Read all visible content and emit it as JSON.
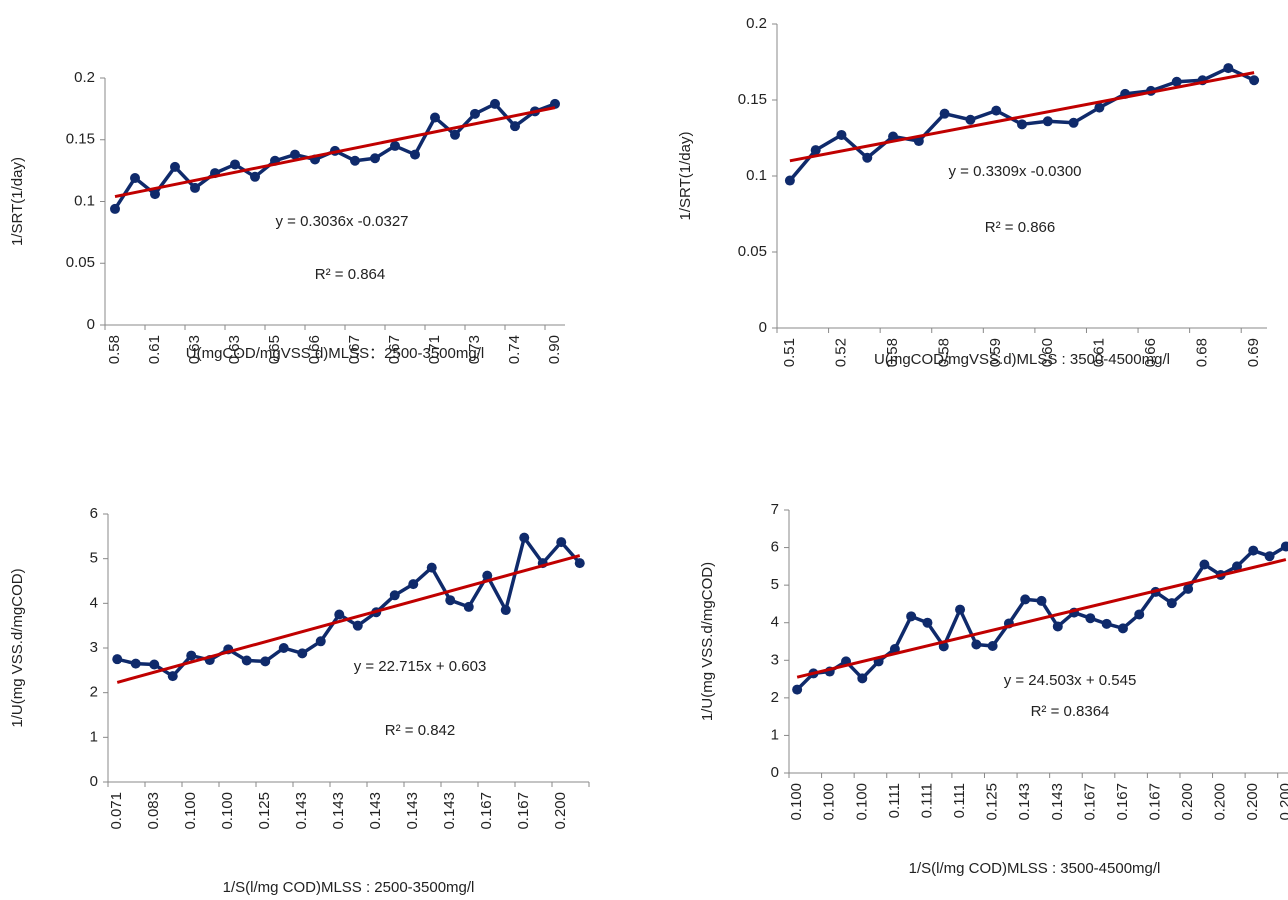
{
  "chart_data": [
    {
      "type": "line",
      "color": "#0f2a6b",
      "categories": [
        "0.58",
        null,
        "0.61",
        null,
        "0.63",
        null,
        "0.63",
        null,
        "0.65",
        null,
        "0.66",
        null,
        "0.67",
        null,
        "0.67",
        null,
        "0.71",
        null,
        "0.73",
        null,
        "0.74",
        null,
        "0.90"
      ],
      "values": [
        0.094,
        0.119,
        0.106,
        0.128,
        0.111,
        0.123,
        0.13,
        0.12,
        0.133,
        0.138,
        0.134,
        0.141,
        0.133,
        0.135,
        0.145,
        0.138,
        0.168,
        0.154,
        0.171,
        0.179,
        0.161,
        0.173,
        0.179
      ],
      "trendline": {
        "color": "#c00000",
        "values": [
          0.104,
          0.176
        ]
      },
      "ylim": [
        0,
        0.2
      ],
      "yticks": [
        0,
        0.05,
        0.1,
        0.15,
        0.2
      ],
      "x_label": "U(mgCOD/mgVSS.d)MLSS：2500-3500mg/l",
      "y_label": "1/SRT(1/day)",
      "annotations": [
        "y = 0.3036x -0.0327",
        "R² = 0.864"
      ]
    },
    {
      "type": "line",
      "color": "#0f2a6b",
      "categories": [
        "0.51",
        null,
        "0.52",
        null,
        "0.58",
        null,
        "0.58",
        null,
        "0.59",
        null,
        "0.60",
        null,
        "0.61",
        null,
        "0.66",
        null,
        "0.68",
        null,
        "0.69"
      ],
      "values": [
        0.097,
        0.117,
        0.127,
        0.112,
        0.126,
        0.123,
        0.141,
        0.137,
        0.143,
        0.134,
        0.136,
        0.135,
        0.145,
        0.154,
        0.156,
        0.162,
        0.163,
        0.171,
        0.163
      ],
      "trendline": {
        "color": "#c00000",
        "values": [
          0.11,
          0.168
        ]
      },
      "ylim": [
        0,
        0.2
      ],
      "yticks": [
        0,
        0.05,
        0.1,
        0.15,
        0.2
      ],
      "x_label": "U(mgCOD/mgVSS.d)MLSS : 3500-4500mg/l",
      "y_label": "1/SRT(1/day)",
      "annotations": [
        "y = 0.3309x -0.0300",
        "R² = 0.866"
      ]
    },
    {
      "type": "line",
      "color": "#0f2a6b",
      "categories": [
        "0.071",
        null,
        "0.083",
        null,
        "0.100",
        null,
        "0.100",
        null,
        "0.125",
        null,
        "0.143",
        null,
        "0.143",
        null,
        "0.143",
        null,
        "0.143",
        null,
        "0.143",
        null,
        "0.167",
        null,
        "0.167",
        null,
        "0.200",
        null
      ],
      "values": [
        2.75,
        2.65,
        2.63,
        2.37,
        2.83,
        2.73,
        2.97,
        2.72,
        2.7,
        3.0,
        2.88,
        3.15,
        3.75,
        3.5,
        3.8,
        4.18,
        4.43,
        4.8,
        4.07,
        3.92,
        4.62,
        3.85,
        5.47,
        4.9,
        5.37,
        4.9
      ],
      "trendline": {
        "color": "#c00000",
        "values": [
          2.23,
          5.07
        ]
      },
      "ylim": [
        0,
        6
      ],
      "yticks": [
        0,
        1,
        2,
        3,
        4,
        5,
        6
      ],
      "x_label": "1/S(l/mg COD)MLSS : 2500-3500mg/l",
      "y_label": "1/U(mg VSS.d/mgCOD)",
      "annotations": [
        "y = 22.715x + 0.603",
        "R² = 0.842"
      ]
    },
    {
      "type": "line",
      "color": "#0f2a6b",
      "categories": [
        "0.100",
        null,
        "0.100",
        null,
        "0.100",
        null,
        "0.111",
        null,
        "0.111",
        null,
        "0.111",
        null,
        "0.125",
        null,
        "0.143",
        null,
        "0.143",
        null,
        "0.167",
        null,
        "0.167",
        null,
        "0.167",
        null,
        "0.200",
        null,
        "0.200",
        null,
        "0.200",
        null,
        "0.200"
      ],
      "values": [
        2.22,
        2.65,
        2.7,
        2.97,
        2.52,
        2.97,
        3.3,
        4.17,
        4.0,
        3.37,
        4.35,
        3.42,
        3.38,
        3.98,
        4.62,
        4.58,
        3.9,
        4.27,
        4.12,
        3.97,
        3.85,
        4.22,
        4.82,
        4.52,
        4.9,
        5.55,
        5.27,
        5.5,
        5.92,
        5.77,
        6.03
      ],
      "trendline": {
        "color": "#c00000",
        "values": [
          2.55,
          5.68
        ]
      },
      "ylim": [
        0,
        7
      ],
      "yticks": [
        0,
        1,
        2,
        3,
        4,
        5,
        6,
        7
      ],
      "x_label": "1/S(l/mg COD)MLSS : 3500-4500mg/l",
      "y_label": "1/U(mg VSS.d/mgCOD)",
      "annotations": [
        "y = 24.503x + 0.545",
        "R² = 0.8364"
      ]
    }
  ]
}
